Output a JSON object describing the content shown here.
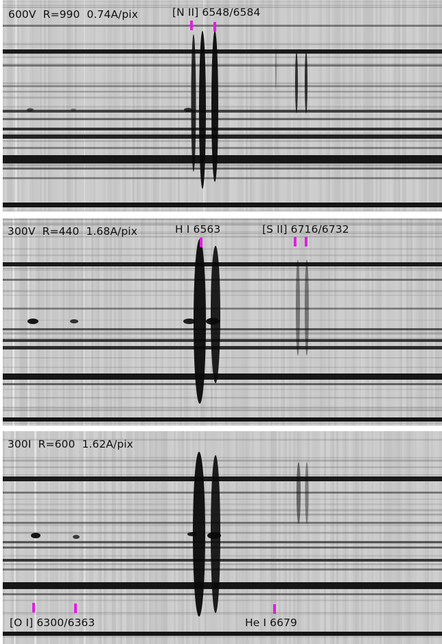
{
  "panels": [
    {
      "title": "600V  R=990  0.74A/pix",
      "line_labels": [
        {
          "text": "[N II] 6548/6584"
        }
      ]
    },
    {
      "title": "300V  R=440  1.68A/pix",
      "line_labels": [
        {
          "text": "H I 6563"
        },
        {
          "text": "[S II] 6716/6732"
        }
      ]
    },
    {
      "title": "300I  R=600  1.62A/pix",
      "line_labels": [
        {
          "text": "[O I] 6300/6363"
        },
        {
          "text": "He I 6679"
        }
      ]
    }
  ],
  "colors": {
    "marker": "#e01fe0",
    "spectrum_background": "#c9c9c9",
    "spectrum_line": "#111111"
  }
}
